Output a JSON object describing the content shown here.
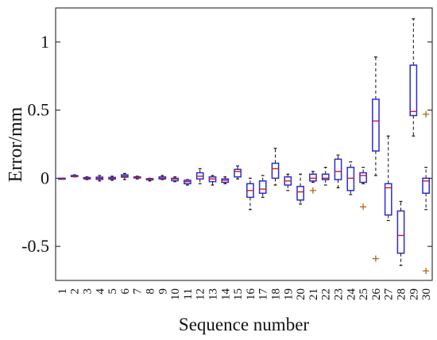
{
  "chart_data": {
    "type": "box",
    "xlabel": "Sequence number",
    "ylabel": "Error/mm",
    "ylim": [
      -0.75,
      1.25
    ],
    "yticks": [
      {
        "value": 1,
        "label": "1"
      },
      {
        "value": 0.5,
        "label": "0.5"
      },
      {
        "value": 0,
        "label": "0"
      },
      {
        "value": -0.5,
        "label": "-0.5"
      }
    ],
    "categories": [
      "1",
      "2",
      "3",
      "4",
      "5",
      "6",
      "7",
      "8",
      "9",
      "10",
      "11",
      "12",
      "13",
      "14",
      "15",
      "16",
      "17",
      "18",
      "19",
      "20",
      "21",
      "22",
      "23",
      "24",
      "25",
      "26",
      "27",
      "28",
      "29",
      "30"
    ],
    "colors": {
      "box": "#2b2bd6",
      "median": "#d11a1a",
      "outlier": "#b5651d",
      "whisker": "#111111"
    },
    "boxes": [
      {
        "min": 0.0,
        "q1": 0.0,
        "median": 0.0,
        "q3": 0.0,
        "max": 0.0,
        "outliers": []
      },
      {
        "min": 0.01,
        "q1": 0.012,
        "median": 0.015,
        "q3": 0.02,
        "max": 0.025,
        "outliers": []
      },
      {
        "min": -0.01,
        "q1": -0.005,
        "median": 0.0,
        "q3": 0.005,
        "max": 0.01,
        "outliers": []
      },
      {
        "min": -0.02,
        "q1": -0.008,
        "median": 0.0,
        "q3": 0.008,
        "max": 0.02,
        "outliers": []
      },
      {
        "min": -0.015,
        "q1": -0.006,
        "median": 0.0,
        "q3": 0.006,
        "max": 0.015,
        "outliers": []
      },
      {
        "min": -0.01,
        "q1": 0.008,
        "median": 0.015,
        "q3": 0.025,
        "max": 0.035,
        "outliers": []
      },
      {
        "min": -0.005,
        "q1": 0.002,
        "median": 0.005,
        "q3": 0.01,
        "max": 0.015,
        "outliers": []
      },
      {
        "min": -0.02,
        "q1": -0.012,
        "median": -0.008,
        "q3": -0.003,
        "max": 0.0,
        "outliers": []
      },
      {
        "min": -0.01,
        "q1": -0.005,
        "median": 0.0,
        "q3": 0.01,
        "max": 0.02,
        "outliers": []
      },
      {
        "min": -0.025,
        "q1": -0.018,
        "median": -0.005,
        "q3": 0.0,
        "max": 0.01,
        "outliers": []
      },
      {
        "min": -0.05,
        "q1": -0.04,
        "median": -0.025,
        "q3": -0.015,
        "max": -0.01,
        "outliers": []
      },
      {
        "min": -0.04,
        "q1": -0.005,
        "median": 0.015,
        "q3": 0.04,
        "max": 0.07,
        "outliers": []
      },
      {
        "min": -0.05,
        "q1": -0.025,
        "median": -0.005,
        "q3": 0.01,
        "max": 0.02,
        "outliers": []
      },
      {
        "min": -0.04,
        "q1": -0.03,
        "median": -0.015,
        "q3": -0.005,
        "max": 0.01,
        "outliers": []
      },
      {
        "min": -0.005,
        "q1": 0.01,
        "median": 0.05,
        "q3": 0.065,
        "max": 0.09,
        "outliers": []
      },
      {
        "min": -0.23,
        "q1": -0.14,
        "median": -0.09,
        "q3": -0.04,
        "max": 0.0,
        "outliers": []
      },
      {
        "min": -0.14,
        "q1": -0.11,
        "median": -0.08,
        "q3": -0.02,
        "max": 0.02,
        "outliers": []
      },
      {
        "min": -0.05,
        "q1": 0.0,
        "median": 0.07,
        "q3": 0.11,
        "max": 0.22,
        "outliers": []
      },
      {
        "min": -0.09,
        "q1": -0.05,
        "median": -0.02,
        "q3": 0.01,
        "max": 0.03,
        "outliers": []
      },
      {
        "min": -0.19,
        "q1": -0.16,
        "median": -0.1,
        "q3": -0.06,
        "max": 0.03,
        "outliers": []
      },
      {
        "min": -0.03,
        "q1": -0.02,
        "median": 0.0,
        "q3": 0.03,
        "max": 0.05,
        "outliers": [
          -0.09
        ]
      },
      {
        "min": -0.05,
        "q1": -0.01,
        "median": 0.0,
        "q3": 0.03,
        "max": 0.08,
        "outliers": []
      },
      {
        "min": -0.07,
        "q1": -0.01,
        "median": 0.05,
        "q3": 0.14,
        "max": 0.17,
        "outliers": []
      },
      {
        "min": -0.12,
        "q1": -0.09,
        "median": 0.0,
        "q3": 0.08,
        "max": 0.12,
        "outliers": []
      },
      {
        "min": -0.04,
        "q1": -0.03,
        "median": 0.02,
        "q3": 0.04,
        "max": 0.08,
        "outliers": [
          -0.21
        ]
      },
      {
        "min": 0.02,
        "q1": 0.2,
        "median": 0.42,
        "q3": 0.58,
        "max": 0.89,
        "outliers": [
          -0.59
        ]
      },
      {
        "min": -0.31,
        "q1": -0.27,
        "median": -0.07,
        "q3": -0.04,
        "max": 0.31,
        "outliers": []
      },
      {
        "min": -0.64,
        "q1": -0.55,
        "median": -0.42,
        "q3": -0.24,
        "max": -0.17,
        "outliers": []
      },
      {
        "min": 0.31,
        "q1": 0.46,
        "median": 0.49,
        "q3": 0.83,
        "max": 1.17,
        "outliers": []
      },
      {
        "min": -0.23,
        "q1": -0.11,
        "median": -0.02,
        "q3": 0.0,
        "max": 0.08,
        "outliers": [
          0.47,
          -0.68
        ]
      }
    ]
  }
}
